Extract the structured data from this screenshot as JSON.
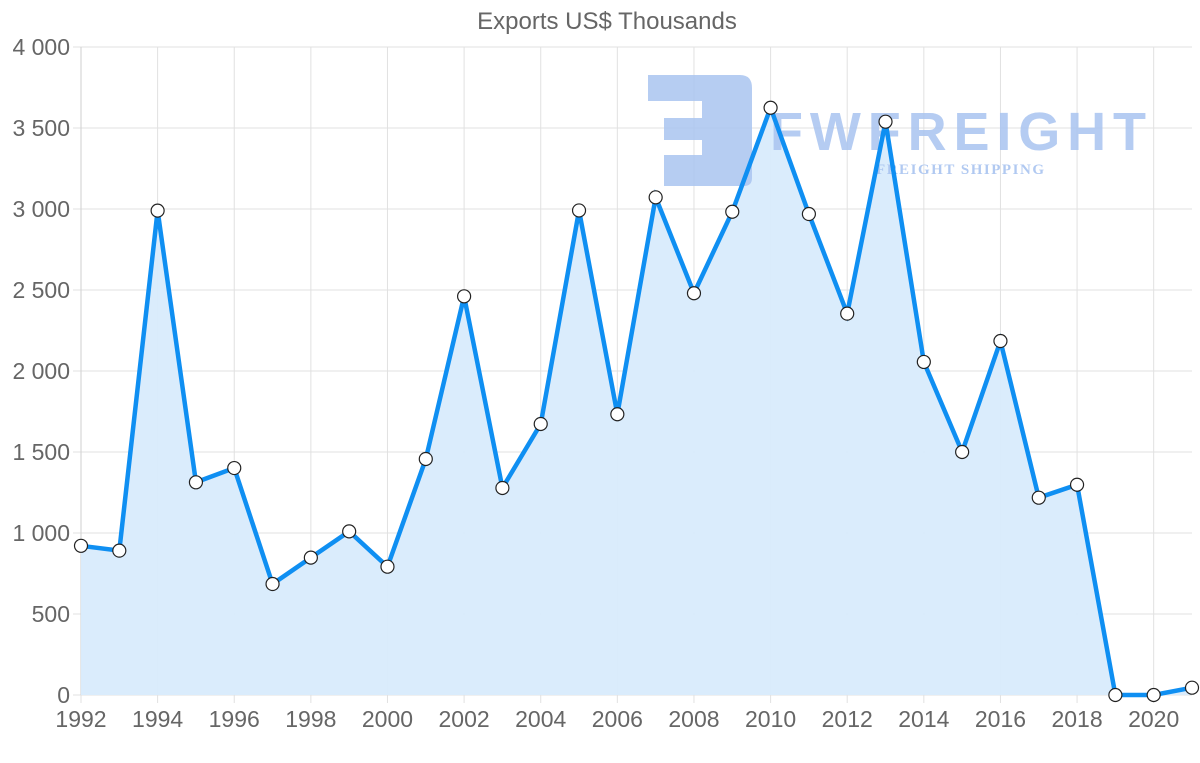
{
  "chart_data": {
    "type": "line",
    "title": "Exports US$ Thousands",
    "xlabel": "",
    "ylabel": "",
    "ylim": [
      0,
      4000
    ],
    "grid": true,
    "legend": null,
    "filled_area": true,
    "x": [
      1992,
      1993,
      1994,
      1995,
      1996,
      1997,
      1998,
      1999,
      2000,
      2001,
      2002,
      2003,
      2004,
      2005,
      2006,
      2007,
      2008,
      2009,
      2010,
      2011,
      2012,
      2013,
      2014,
      2015,
      2016,
      2017,
      2018,
      2019,
      2020,
      2021
    ],
    "series": [
      {
        "name": "Exports US$ Thousands",
        "values": [
          921,
          891,
          2990,
          1313,
          1401,
          685,
          848,
          1010,
          792,
          1457,
          2461,
          1278,
          1673,
          2991,
          1733,
          3072,
          2480,
          2983,
          3625,
          2969,
          2354,
          3539,
          2056,
          1500,
          2185,
          1218,
          1298,
          0,
          0,
          45
        ]
      }
    ],
    "y_ticks": [
      {
        "value": 0,
        "label": "0"
      },
      {
        "value": 500,
        "label": "500"
      },
      {
        "value": 1000,
        "label": "1 000"
      },
      {
        "value": 1500,
        "label": "1 500"
      },
      {
        "value": 2000,
        "label": "2 000"
      },
      {
        "value": 2500,
        "label": "2 500"
      },
      {
        "value": 3000,
        "label": "3 000"
      },
      {
        "value": 3500,
        "label": "3 500"
      },
      {
        "value": 4000,
        "label": "4 000"
      }
    ],
    "x_tick_labels": [
      "1992",
      "1994",
      "1996",
      "1998",
      "2000",
      "2002",
      "2004",
      "2006",
      "2008",
      "2010",
      "2012",
      "2014",
      "2016",
      "2018",
      "2020"
    ]
  },
  "colors": {
    "line": "#0f8ff2",
    "fill": "#d8ebfc",
    "grid": "#e1e1e1",
    "text": "#666666",
    "watermark": "#a9c4f0"
  },
  "watermark": {
    "brand": "FWFREIGHT",
    "tagline": "FREIGHT SHIPPING"
  }
}
